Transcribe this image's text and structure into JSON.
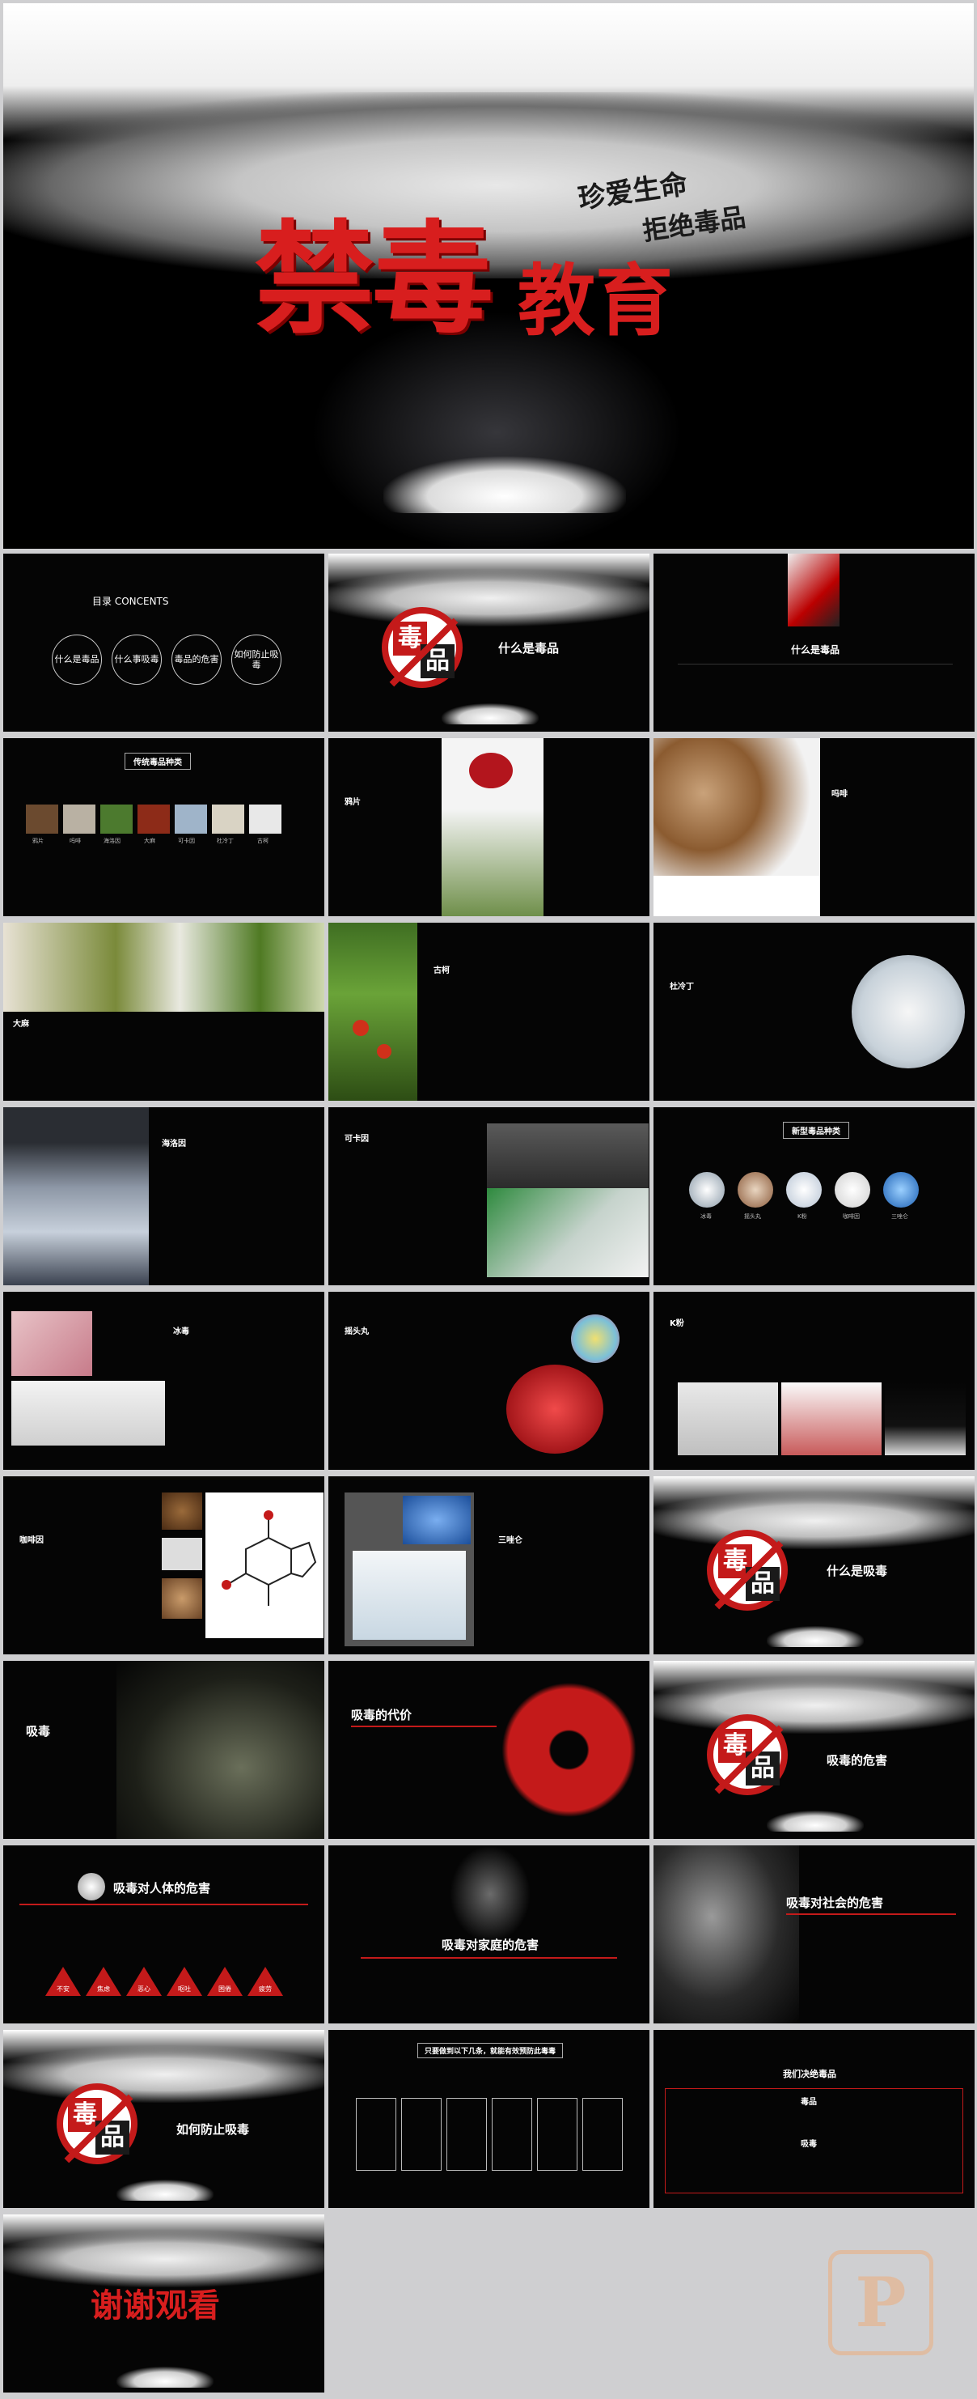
{
  "hero": {
    "title_main": "禁毒",
    "title_sub": "教育",
    "tag_line_1": "珍爱生命",
    "tag_line_2": "拒绝毒品"
  },
  "s1": {
    "heading": "目录 CONCENTS",
    "items": [
      "什么是毒品",
      "什么事吸毒",
      "毒品的危害",
      "如何防止吸毒"
    ]
  },
  "s2": {
    "badge_1": "毒",
    "badge_2": "品",
    "heading": "什么是毒品"
  },
  "s3": {
    "heading": "什么是毒品"
  },
  "s4": {
    "heading": "传统毒品种类",
    "labels": [
      "鸦片",
      "吗啡",
      "海洛因",
      "大麻",
      "可卡因",
      "杜冷丁",
      "古柯"
    ]
  },
  "s5": {
    "heading": "鸦片"
  },
  "s6": {
    "heading": "吗啡"
  },
  "s7": {
    "heading": "大麻"
  },
  "s8": {
    "heading": "古柯"
  },
  "s9": {
    "heading": "杜冷丁"
  },
  "s10": {
    "heading": "海洛因"
  },
  "s11": {
    "heading": "可卡因"
  },
  "s12": {
    "heading": "新型毒品种类",
    "labels": [
      "冰毒",
      "摇头丸",
      "K粉",
      "咖啡因",
      "三唑仑"
    ]
  },
  "s13": {
    "heading": "冰毒"
  },
  "s14": {
    "heading": "摇头丸"
  },
  "s15": {
    "heading": "K粉"
  },
  "s16": {
    "heading": "咖啡因"
  },
  "s17": {
    "heading": "三唑仑"
  },
  "s18": {
    "badge_1": "毒",
    "badge_2": "品",
    "heading": "什么是吸毒"
  },
  "s19": {
    "heading": "吸毒"
  },
  "s20": {
    "heading": "吸毒的代价"
  },
  "s21": {
    "badge_1": "毒",
    "badge_2": "品",
    "heading": "吸毒的危害"
  },
  "s22": {
    "heading": "吸毒对人体的危害",
    "labels": [
      "不安",
      "焦虑",
      "恶心",
      "呕吐",
      "困倦",
      "疲劳"
    ]
  },
  "s23": {
    "heading": "吸毒对家庭的危害"
  },
  "s24": {
    "heading": "吸毒对社会的危害"
  },
  "s25": {
    "badge_1": "毒",
    "badge_2": "品",
    "heading": "如何防止吸毒"
  },
  "s26": {
    "heading": "只要做到以下几条，就能有效预防此毒毒"
  },
  "s27": {
    "heading": "我们决绝毒品",
    "sub_1": "毒品",
    "sub_2": "吸毒"
  },
  "s28": {
    "heading": "谢谢观看"
  },
  "watermark": {
    "glyph": "P"
  }
}
